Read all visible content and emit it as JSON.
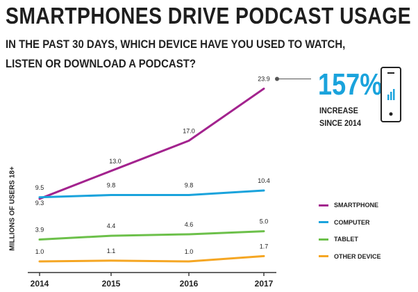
{
  "header": {
    "title": "SMARTPHONES DRIVE PODCAST USAGE",
    "subtitle_line1": "IN THE PAST 30 DAYS, WHICH DEVICE HAVE YOU USED TO WATCH,",
    "subtitle_line2": "LISTEN OR DOWNLOAD A PODCAST?"
  },
  "callout": {
    "percent": "157%",
    "line1": "INCREASE",
    "line2": "SINCE 2014"
  },
  "colors": {
    "smartphone": "#a3238e",
    "computer": "#1aa3dc",
    "tablet": "#6cc04a",
    "other": "#f5a623",
    "accent": "#1aa3dc"
  },
  "chart_data": {
    "type": "line",
    "title": "SMARTPHONES DRIVE PODCAST USAGE",
    "subtitle": "IN THE PAST 30 DAYS, WHICH DEVICE HAVE YOU USED TO WATCH, LISTEN OR DOWNLOAD A PODCAST?",
    "xlabel": "",
    "ylabel": "MILLIONS OF USERS 18+",
    "categories": [
      "2014",
      "2015",
      "2016",
      "2017"
    ],
    "series": [
      {
        "name": "SMARTPHONE",
        "values": [
          9.3,
          13.0,
          17.0,
          23.9
        ],
        "labels": [
          "9.3",
          "13.0",
          "17.0",
          "23.9"
        ]
      },
      {
        "name": "COMPUTER",
        "values": [
          9.5,
          9.8,
          9.8,
          10.4
        ],
        "labels": [
          "9.5",
          "9.8",
          "9.8",
          "10.4"
        ]
      },
      {
        "name": "TABLET",
        "values": [
          3.9,
          4.4,
          4.6,
          5.0
        ],
        "labels": [
          "3.9",
          "4.4",
          "4.6",
          "5.0"
        ]
      },
      {
        "name": "OTHER DEVICE",
        "values": [
          1.0,
          1.1,
          1.0,
          1.7
        ],
        "labels": [
          "1.0",
          "1.1",
          "1.0",
          "1.7"
        ]
      }
    ],
    "grid": false,
    "legend_position": "right"
  }
}
